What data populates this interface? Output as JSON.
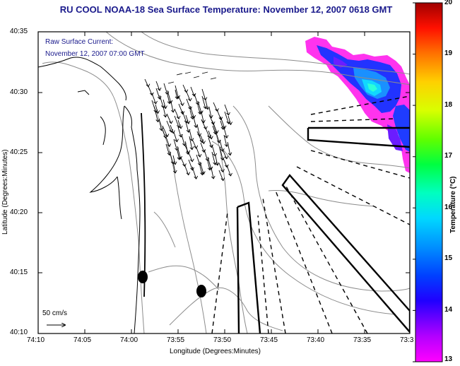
{
  "title": "RU COOL  NOAA-18  Sea Surface Temperature:  November 12, 2007 0618 GMT",
  "annotation": {
    "line1": "Raw Surface Current:",
    "line2": "November 12, 2007 07:00 GMT"
  },
  "scale_label": "50 cm/s",
  "axes": {
    "xlabel": "Longitude (Degrees:Minutes)",
    "ylabel": "Latitude (Degrees:Minutes)",
    "x_ticks": [
      "74:10",
      "74:05",
      "74:00",
      "73:55",
      "73:50",
      "73:45",
      "73:40",
      "73:35",
      "73:3"
    ],
    "y_ticks": [
      "40:35",
      "40:30",
      "40:25",
      "40:20",
      "40:15",
      "40:10"
    ]
  },
  "colorbar": {
    "label": "Temperature (°C)",
    "min": 13,
    "max": 20,
    "ticks": [
      "20",
      "19",
      "18",
      "17",
      "16",
      "15",
      "14",
      "13"
    ]
  },
  "colors": {
    "title": "#1a1a8c",
    "annotation": "#1a1a8c",
    "coastline": "#000000",
    "bathymetry": "#8c8c8c"
  }
}
